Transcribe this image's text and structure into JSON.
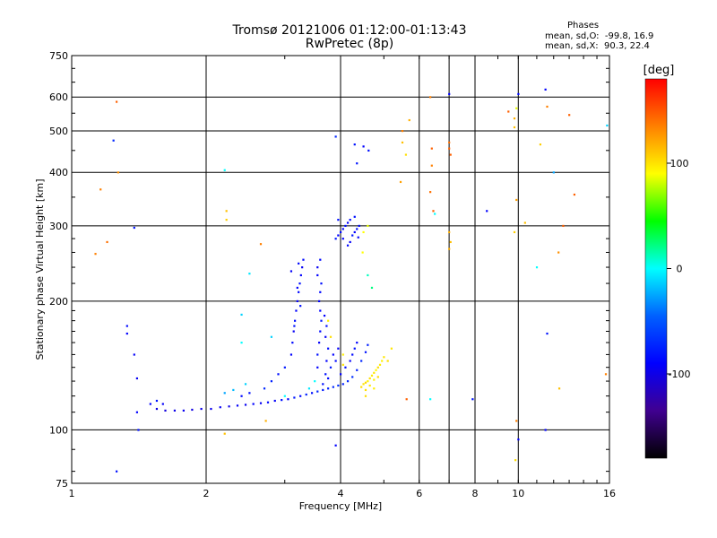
{
  "chart_data": {
    "type": "scatter",
    "title": "Tromsø 20121006 01:12:00-01:13:43",
    "subtitle": "RwPretec (8p)",
    "xlabel": "Frequency [MHz]",
    "ylabel": "Stationary phase Virtual Height [km]",
    "x_scale": "log",
    "y_scale": "log",
    "xlim": [
      1,
      16
    ],
    "ylim": [
      75,
      750
    ],
    "x_ticks": [
      1,
      2,
      4,
      6,
      8,
      10,
      16
    ],
    "x_tick_labels": [
      "1",
      "2",
      "4",
      "6",
      "8",
      "10",
      "16"
    ],
    "x_gridlines": [
      2,
      4,
      6,
      7,
      8,
      10
    ],
    "y_ticks": [
      75,
      100,
      200,
      300,
      400,
      500,
      600,
      750
    ],
    "y_tick_labels": [
      "75",
      "100",
      "200",
      "300",
      "400",
      "500",
      "600",
      "750"
    ],
    "grid": true,
    "info_title": "Phases",
    "info_lines": [
      "mean, sd,O:  -99.8, 16.9",
      "mean, sd,X:  90.3, 22.4"
    ],
    "colorbar": {
      "label": "[deg]",
      "range": [
        -180,
        180
      ],
      "ticks": [
        100,
        0,
        -100
      ],
      "tick_labels": [
        "100",
        "0",
        "-100"
      ],
      "colors": [
        "#ff0000",
        "#ff8000",
        "#ffff00",
        "#00ff00",
        "#00ffff",
        "#0060ff",
        "#0000ff",
        "#400090",
        "#000000"
      ]
    },
    "series": [
      {
        "points": [
          [
            1.55,
            112,
            -110
          ],
          [
            1.62,
            111,
            -112
          ],
          [
            1.7,
            111,
            -108
          ],
          [
            1.78,
            111,
            -105
          ],
          [
            1.86,
            111.5,
            -110
          ],
          [
            1.95,
            112,
            -108
          ],
          [
            2.05,
            112,
            -106
          ],
          [
            2.15,
            113,
            -104
          ],
          [
            2.25,
            113.5,
            -108
          ],
          [
            2.35,
            114,
            -102
          ],
          [
            2.45,
            114.5,
            -105
          ],
          [
            2.55,
            115,
            -100
          ],
          [
            2.65,
            115.5,
            -104
          ],
          [
            2.75,
            116,
            -98
          ],
          [
            2.85,
            117,
            -102
          ],
          [
            2.95,
            117.5,
            -96
          ],
          [
            3.05,
            118,
            -100
          ],
          [
            3.15,
            119,
            -94
          ],
          [
            3.25,
            120,
            -98
          ],
          [
            3.35,
            121,
            -92
          ],
          [
            3.45,
            122,
            -96
          ],
          [
            3.55,
            123,
            -90
          ],
          [
            3.65,
            124,
            -94
          ],
          [
            3.75,
            125,
            -92
          ],
          [
            3.85,
            126,
            -90
          ],
          [
            3.95,
            127,
            -88
          ],
          [
            4.05,
            128,
            -92
          ],
          [
            4.15,
            130,
            -90
          ],
          [
            4.25,
            133,
            -88
          ],
          [
            4.35,
            138,
            -92
          ],
          [
            4.45,
            145,
            -90
          ],
          [
            4.55,
            152,
            -95
          ],
          [
            4.6,
            158,
            -92
          ],
          [
            1.5,
            115,
            -100
          ],
          [
            1.55,
            117,
            -95
          ],
          [
            1.6,
            115,
            -102
          ],
          [
            2.4,
            120,
            -98
          ],
          [
            2.5,
            122,
            -96
          ],
          [
            2.7,
            125,
            -90
          ],
          [
            2.8,
            130,
            -92
          ],
          [
            2.9,
            135,
            -96
          ],
          [
            3.0,
            140,
            -94
          ],
          [
            3.1,
            150,
            -100
          ],
          [
            3.12,
            160,
            -98
          ],
          [
            3.14,
            170,
            -104
          ],
          [
            3.16,
            180,
            -96
          ],
          [
            3.18,
            190,
            -100
          ],
          [
            3.2,
            200,
            -102
          ],
          [
            3.22,
            210,
            -98
          ],
          [
            3.24,
            220,
            -96
          ],
          [
            3.26,
            230,
            -100
          ],
          [
            3.28,
            240,
            -104
          ],
          [
            3.3,
            250,
            -98
          ],
          [
            3.25,
            195,
            -96
          ],
          [
            3.15,
            175,
            -95
          ],
          [
            3.2,
            215,
            -100
          ],
          [
            3.1,
            235,
            -102
          ],
          [
            3.22,
            245,
            -98
          ],
          [
            3.55,
            140,
            -100
          ],
          [
            3.55,
            150,
            -96
          ],
          [
            3.58,
            160,
            -102
          ],
          [
            3.6,
            170,
            -98
          ],
          [
            3.62,
            180,
            -94
          ],
          [
            3.6,
            190,
            -100
          ],
          [
            3.58,
            200,
            -102
          ],
          [
            3.6,
            210,
            -98
          ],
          [
            3.62,
            220,
            -96
          ],
          [
            3.55,
            230,
            -100
          ],
          [
            3.55,
            240,
            -104
          ],
          [
            3.6,
            250,
            -98
          ],
          [
            3.7,
            135,
            -96
          ],
          [
            3.72,
            145,
            -100
          ],
          [
            3.75,
            155,
            -98
          ],
          [
            3.7,
            165,
            -102
          ],
          [
            3.72,
            175,
            -96
          ],
          [
            3.8,
            140,
            -94
          ],
          [
            3.85,
            150,
            -100
          ],
          [
            3.9,
            145,
            -98
          ],
          [
            3.95,
            155,
            -102
          ],
          [
            3.68,
            185,
            -100
          ],
          [
            3.65,
            128,
            -96
          ],
          [
            3.75,
            132,
            -98
          ],
          [
            4.0,
            135,
            -100
          ],
          [
            4.1,
            140,
            -96
          ],
          [
            4.2,
            145,
            -102
          ],
          [
            4.25,
            150,
            -98
          ],
          [
            4.3,
            155,
            -96
          ],
          [
            4.35,
            160,
            -100
          ],
          [
            3.9,
            280,
            -95
          ],
          [
            3.95,
            285,
            -100
          ],
          [
            4.0,
            290,
            -98
          ],
          [
            4.05,
            295,
            -102
          ],
          [
            4.1,
            300,
            -96
          ],
          [
            4.15,
            305,
            -100
          ],
          [
            4.2,
            310,
            -98
          ],
          [
            4.25,
            285,
            -94
          ],
          [
            4.3,
            290,
            -100
          ],
          [
            4.35,
            295,
            -96
          ],
          [
            4.2,
            275,
            -102
          ],
          [
            4.4,
            300,
            -98
          ],
          [
            3.95,
            310,
            -96
          ],
          [
            4.05,
            280,
            -100
          ],
          [
            4.15,
            270,
            -98
          ],
          [
            4.3,
            315,
            -96
          ],
          [
            4.38,
            282,
            -100
          ],
          [
            4.35,
            420,
            -95
          ],
          [
            4.5,
            460,
            -100
          ],
          [
            4.62,
            450,
            -96
          ],
          [
            1.24,
            475,
            -90
          ],
          [
            1.38,
            297,
            -95
          ],
          [
            1.33,
            168,
            -100
          ],
          [
            1.38,
            150,
            -102
          ],
          [
            1.4,
            132,
            -104
          ],
          [
            1.4,
            110,
            -100
          ],
          [
            1.41,
            100,
            -96
          ],
          [
            1.33,
            175,
            -98
          ],
          [
            2.2,
            122,
            -60
          ],
          [
            2.3,
            124,
            -55
          ],
          [
            2.45,
            128,
            -50
          ],
          [
            2.8,
            165,
            -50
          ],
          [
            3.0,
            120,
            -40
          ],
          [
            3.4,
            125,
            -45
          ],
          [
            3.5,
            130,
            -40
          ],
          [
            1.26,
            80,
            -96
          ]
        ]
      },
      {
        "points": [
          [
            4.45,
            126,
            110
          ],
          [
            4.5,
            128,
            108
          ],
          [
            4.55,
            129,
            112
          ],
          [
            4.6,
            130,
            104
          ],
          [
            4.65,
            132,
            110
          ],
          [
            4.7,
            134,
            106
          ],
          [
            4.75,
            136,
            108
          ],
          [
            4.8,
            138,
            102
          ],
          [
            4.85,
            140,
            110
          ],
          [
            4.9,
            142,
            106
          ],
          [
            4.95,
            145,
            104
          ],
          [
            5.0,
            148,
            108
          ],
          [
            4.55,
            124,
            110
          ],
          [
            4.65,
            127,
            108
          ],
          [
            4.75,
            131,
            104
          ],
          [
            4.85,
            133,
            112
          ],
          [
            3.75,
            180,
            105
          ],
          [
            3.8,
            165,
            110
          ],
          [
            4.05,
            142,
            108
          ],
          [
            4.05,
            150,
            105
          ],
          [
            1.26,
            585,
            150
          ],
          [
            1.16,
            365,
            140
          ],
          [
            1.2,
            275,
            145
          ],
          [
            1.13,
            258,
            140
          ],
          [
            1.27,
            400,
            135
          ],
          [
            2.22,
            325,
            120
          ],
          [
            2.22,
            310,
            115
          ],
          [
            2.65,
            272,
            140
          ],
          [
            2.72,
            105,
            125
          ],
          [
            2.2,
            98,
            120
          ],
          [
            4.55,
            120,
            110
          ],
          [
            4.75,
            125,
            105
          ],
          [
            5.1,
            145,
            110
          ],
          [
            5.2,
            155,
            108
          ],
          [
            5.5,
            470,
            120
          ],
          [
            5.6,
            440,
            110
          ],
          [
            5.5,
            500,
            140
          ],
          [
            5.7,
            530,
            125
          ],
          [
            5.45,
            380,
            130
          ],
          [
            5.62,
            118,
            150
          ],
          [
            6.35,
            600,
            140
          ],
          [
            6.4,
            455,
            150
          ],
          [
            6.35,
            360,
            145
          ],
          [
            6.4,
            415,
            140
          ],
          [
            6.45,
            325,
            150
          ],
          [
            7.0,
            470,
            145
          ],
          [
            7.0,
            455,
            150
          ],
          [
            7.05,
            440,
            150
          ],
          [
            7.0,
            290,
            125
          ],
          [
            7.05,
            275,
            120
          ],
          [
            7.0,
            265,
            125
          ],
          [
            9.5,
            555,
            150
          ],
          [
            9.8,
            535,
            125
          ],
          [
            9.8,
            510,
            120
          ],
          [
            9.9,
            565,
            90
          ],
          [
            9.9,
            345,
            130
          ],
          [
            9.8,
            290,
            115
          ],
          [
            10.35,
            305,
            120
          ],
          [
            11.2,
            465,
            115
          ],
          [
            11.6,
            570,
            140
          ],
          [
            12.3,
            260,
            135
          ],
          [
            12.6,
            300,
            150
          ],
          [
            13.0,
            545,
            150
          ],
          [
            13.35,
            355,
            150
          ],
          [
            9.9,
            105,
            140
          ],
          [
            9.85,
            85,
            110
          ],
          [
            12.35,
            125,
            120
          ],
          [
            15.7,
            135,
            140
          ]
        ]
      },
      {
        "points": [
          [
            2.2,
            405,
            -40
          ],
          [
            2.5,
            232,
            -45
          ],
          [
            2.4,
            186,
            -50
          ],
          [
            2.4,
            160,
            -40
          ],
          [
            6.35,
            118,
            -40
          ],
          [
            6.5,
            320,
            -40
          ],
          [
            8.5,
            325,
            -100
          ],
          [
            7.9,
            118,
            -95
          ],
          [
            10.0,
            95,
            -100
          ],
          [
            11.5,
            100,
            -100
          ],
          [
            11.6,
            168,
            -95
          ],
          [
            11.0,
            240,
            -40
          ],
          [
            12.0,
            400,
            -60
          ],
          [
            15.8,
            515,
            -50
          ],
          [
            7.0,
            610,
            -100
          ],
          [
            11.5,
            625,
            -100
          ],
          [
            10.0,
            610,
            -98
          ],
          [
            4.3,
            465,
            -95
          ],
          [
            3.9,
            485,
            -90
          ],
          [
            3.9,
            92,
            -100
          ],
          [
            4.7,
            215,
            -20
          ],
          [
            4.6,
            230,
            -30
          ],
          [
            4.5,
            290,
            100
          ],
          [
            4.6,
            300,
            90
          ],
          [
            4.48,
            260,
            100
          ]
        ]
      }
    ]
  }
}
